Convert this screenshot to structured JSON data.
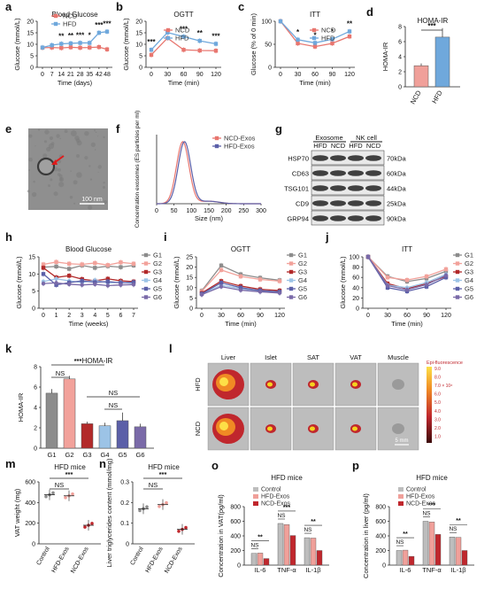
{
  "panel_letters": [
    "a",
    "b",
    "c",
    "d",
    "e",
    "f",
    "g",
    "h",
    "i",
    "j",
    "k",
    "l",
    "m",
    "n",
    "o",
    "p"
  ],
  "colors": {
    "red": "#e8766f",
    "blue": "#6fa8dc",
    "g1": "#8c8c8c",
    "g2": "#f2a29b",
    "g3": "#b22a2a",
    "g4": "#9cc3e6",
    "g5": "#5b5fa8",
    "g6": "#7a6aa8",
    "bar_red": "#c0272d",
    "bar_pink": "#f0a09a",
    "bar_grey": "#bdbdbd"
  },
  "sig": {
    "one": "*",
    "two": "**",
    "three": "***",
    "ns": "NS"
  },
  "legend_ncd_hfd": [
    "NCD",
    "HFD"
  ],
  "legend_groups": [
    "G1",
    "G2",
    "G3",
    "G4",
    "G5",
    "G6"
  ],
  "legend_exos": [
    "Control",
    "HFD-Exos",
    "NCD-Exos"
  ],
  "chart_data": [
    {
      "id": "a",
      "type": "line",
      "title": "Blood Glucose",
      "xlabel": "Time (days)",
      "ylabel": "Glucose (mmol/L)",
      "x": [
        0,
        7,
        14,
        21,
        28,
        35,
        42,
        48
      ],
      "ylim": [
        0,
        20
      ],
      "yticks": [
        0,
        5,
        10,
        15,
        20
      ],
      "series": [
        {
          "name": "NCD",
          "values": [
            8.5,
            8.6,
            8.4,
            8.7,
            8.5,
            8.6,
            8.8,
            7.8
          ]
        },
        {
          "name": "HFD",
          "values": [
            8.6,
            9.6,
            10.2,
            10.4,
            10.6,
            10.6,
            15.0,
            15.5
          ]
        }
      ],
      "stars": [
        "",
        "",
        "**",
        "**",
        "***",
        "*",
        "***",
        "***"
      ]
    },
    {
      "id": "b",
      "type": "line",
      "title": "OGTT",
      "xlabel": "Time (min)",
      "ylabel": "Glucose (mmol/L)",
      "x": [
        0,
        30,
        60,
        90,
        120
      ],
      "ylim": [
        0,
        20
      ],
      "yticks": [
        0,
        5,
        10,
        15,
        20
      ],
      "series": [
        {
          "name": "NCD",
          "values": [
            5.4,
            12.7,
            7.6,
            7.3,
            7.2
          ]
        },
        {
          "name": "HFD",
          "values": [
            7.6,
            15.1,
            13.3,
            11.5,
            10.2
          ]
        }
      ],
      "stars": [
        "***",
        "",
        "***",
        "**",
        "***"
      ]
    },
    {
      "id": "c",
      "type": "line",
      "title": "ITT",
      "xlabel": "Time (min)",
      "ylabel": "Glucose (% of 0 min)",
      "x": [
        0,
        30,
        60,
        90,
        120
      ],
      "ylim": [
        0,
        100
      ],
      "yticks": [
        0,
        50,
        100
      ],
      "series": [
        {
          "name": "NCD",
          "values": [
            100,
            52,
            45,
            52,
            67
          ]
        },
        {
          "name": "HFD",
          "values": [
            100,
            60,
            53,
            61,
            78
          ]
        }
      ],
      "stars": [
        "",
        "*",
        "*",
        "*",
        "**"
      ]
    },
    {
      "id": "d",
      "type": "bar",
      "title": "HOMA-IR",
      "ylabel": "HOMA-IR",
      "categories": [
        "NCD",
        "HFD"
      ],
      "values": [
        2.8,
        6.6
      ],
      "errors": [
        0.3,
        1.2
      ],
      "ylim": [
        0,
        8
      ],
      "yticks": [
        0,
        2,
        4,
        6,
        8
      ],
      "sig": "***"
    },
    {
      "id": "f",
      "type": "line",
      "xlabel": "Size (nm)",
      "ylabel": "Concentration exosomes (ES particles per ml)",
      "x": [
        0,
        50,
        100,
        150,
        200,
        250,
        300
      ],
      "xlim": [
        0,
        300
      ],
      "series": [
        {
          "name": "NCD-Exos"
        },
        {
          "name": "HFD-Exos"
        }
      ]
    },
    {
      "id": "h",
      "type": "line",
      "title": "Blood Glucose",
      "xlabel": "Time (weeks)",
      "ylabel": "Glucose (mmol/L)",
      "x": [
        0,
        1,
        2,
        3,
        4,
        5,
        6,
        7
      ],
      "ylim": [
        0,
        15
      ],
      "yticks": [
        0,
        5,
        10,
        15
      ],
      "series": [
        {
          "name": "G1",
          "values": [
            12.0,
            12.2,
            11.5,
            12.5,
            11.8,
            12.3,
            12.0,
            12.5
          ]
        },
        {
          "name": "G2",
          "values": [
            12.8,
            13.5,
            13.0,
            12.8,
            13.2,
            12.6,
            13.4,
            13.0
          ]
        },
        {
          "name": "G3",
          "values": [
            11.8,
            9.0,
            9.5,
            8.5,
            8.0,
            8.6,
            8.0,
            7.8
          ]
        },
        {
          "name": "G4",
          "values": [
            7.8,
            8.6,
            8.0,
            7.5,
            8.2,
            7.4,
            7.6,
            7.2
          ]
        },
        {
          "name": "G5",
          "values": [
            10.0,
            6.8,
            7.5,
            8.0,
            7.6,
            7.8,
            7.4,
            7.6
          ]
        },
        {
          "name": "G6",
          "values": [
            7.2,
            7.4,
            7.0,
            6.8,
            7.0,
            6.6,
            6.8,
            6.9
          ]
        }
      ]
    },
    {
      "id": "i",
      "type": "line",
      "title": "OGTT",
      "xlabel": "Time (min)",
      "ylabel": "Glucose (mmol/L)",
      "x": [
        0,
        30,
        60,
        90,
        120
      ],
      "ylim": [
        0,
        25
      ],
      "yticks": [
        0,
        5,
        10,
        15,
        20,
        25
      ],
      "series": [
        {
          "name": "G1",
          "values": [
            8.5,
            20.8,
            16.5,
            14.8,
            13.6
          ]
        },
        {
          "name": "G2",
          "values": [
            8.2,
            18.6,
            15.5,
            14.0,
            13.2
          ]
        },
        {
          "name": "G3",
          "values": [
            7.4,
            13.2,
            10.8,
            9.2,
            8.6
          ]
        },
        {
          "name": "G4",
          "values": [
            6.8,
            11.2,
            9.5,
            8.4,
            7.6
          ]
        },
        {
          "name": "G5",
          "values": [
            7.0,
            12.4,
            10.0,
            8.6,
            8.0
          ]
        },
        {
          "name": "G6",
          "values": [
            6.6,
            10.5,
            8.8,
            8.0,
            7.4
          ]
        }
      ]
    },
    {
      "id": "j",
      "type": "line",
      "title": "ITT",
      "xlabel": "Time (min)",
      "ylabel": "Glucose (mmol/L)",
      "x": [
        0,
        30,
        60,
        90,
        120
      ],
      "ylim": [
        0,
        100
      ],
      "yticks": [
        0,
        20,
        40,
        60,
        80,
        100
      ],
      "series": [
        {
          "name": "G1",
          "values": [
            100,
            62,
            52,
            58,
            72
          ]
        },
        {
          "name": "G2",
          "values": [
            100,
            60,
            55,
            62,
            76
          ]
        },
        {
          "name": "G3",
          "values": [
            100,
            48,
            38,
            48,
            62
          ]
        },
        {
          "name": "G4",
          "values": [
            100,
            45,
            40,
            50,
            66
          ]
        },
        {
          "name": "G5",
          "values": [
            100,
            40,
            33,
            42,
            60
          ]
        },
        {
          "name": "G6",
          "values": [
            100,
            44,
            36,
            46,
            64
          ]
        }
      ]
    },
    {
      "id": "k",
      "type": "bar",
      "title": "HOMA-IR",
      "ylabel": "HOMA-IR",
      "categories": [
        "G1",
        "G2",
        "G3",
        "G4",
        "G5",
        "G6"
      ],
      "values": [
        5.4,
        6.8,
        2.4,
        2.2,
        2.7,
        2.1
      ],
      "errors": [
        0.4,
        0.3,
        0.2,
        0.3,
        0.8,
        0.3
      ],
      "ylim": [
        0,
        8
      ],
      "yticks": [
        0,
        2,
        4,
        6,
        8
      ]
    },
    {
      "id": "m",
      "type": "scatter",
      "title": "HFD mice",
      "ylabel": "VAT weight (mg)",
      "categories": [
        "Control",
        "HFD-Exos",
        "NCD-Exos"
      ],
      "values": [
        475,
        465,
        180
      ],
      "ylim": [
        0,
        600
      ],
      "yticks": [
        0,
        200,
        400,
        600
      ]
    },
    {
      "id": "n",
      "type": "scatter",
      "title": "HFD mice",
      "ylabel": "Liver triglycerides content (mmol/mg)",
      "categories": [
        "Control",
        "HFD-Exos",
        "NCD-Exos"
      ],
      "values": [
        0.17,
        0.19,
        0.07
      ],
      "ylim": [
        0,
        0.3
      ],
      "yticks": [
        0,
        0.1,
        0.2,
        0.3
      ]
    },
    {
      "id": "o",
      "type": "bar",
      "title": "HFD mice",
      "ylabel": "Concentration in VAT(pg/ml)",
      "categories": [
        "IL-6",
        "TNF-α",
        "IL-1β"
      ],
      "series": [
        {
          "name": "Control",
          "values": [
            160,
            570,
            375
          ]
        },
        {
          "name": "HFD-Exos",
          "values": [
            165,
            555,
            370
          ]
        },
        {
          "name": "NCD-Exos",
          "values": [
            90,
            405,
            200
          ]
        }
      ],
      "ylim": [
        0,
        800
      ],
      "yticks": [
        0,
        200,
        400,
        600,
        800
      ]
    },
    {
      "id": "p",
      "type": "bar",
      "title": "HFD mice",
      "ylabel": "Concentration in liver (pg/ml)",
      "categories": [
        "IL-6",
        "TNF-α",
        "IL-1β"
      ],
      "series": [
        {
          "name": "Control",
          "values": [
            200,
            600,
            385
          ]
        },
        {
          "name": "HFD-Exos",
          "values": [
            205,
            590,
            380
          ]
        },
        {
          "name": "NCD-Exos",
          "values": [
            120,
            420,
            200
          ]
        }
      ],
      "ylim": [
        0,
        800
      ],
      "yticks": [
        0,
        200,
        400,
        600,
        800
      ]
    }
  ],
  "panel_e": {
    "scale_bar": "100 nm"
  },
  "panel_g": {
    "headers": [
      "Exosome",
      "NK cell"
    ],
    "lanes": [
      "HFD",
      "NCD",
      "HFD",
      "NCD"
    ],
    "proteins": [
      "HSP70",
      "CD63",
      "TSG101",
      "CD9",
      "GRP94"
    ],
    "sizes": [
      "70kDa",
      "60kDa",
      "44kDa",
      "25kDa",
      "90kDa"
    ]
  },
  "panel_l": {
    "columns": [
      "Liver",
      "Islet",
      "SAT",
      "VAT",
      "Muscle"
    ],
    "rows": [
      "HFD",
      "NCD"
    ],
    "colorbar_title": "Epi-fluorescence",
    "colorbar_ticks": [
      "9.0",
      "8.0",
      "7.0 × 10⁸",
      "6.0",
      "5.0",
      "4.0",
      "3.0",
      "2.0",
      "1.0"
    ],
    "scale": "5 mm"
  }
}
